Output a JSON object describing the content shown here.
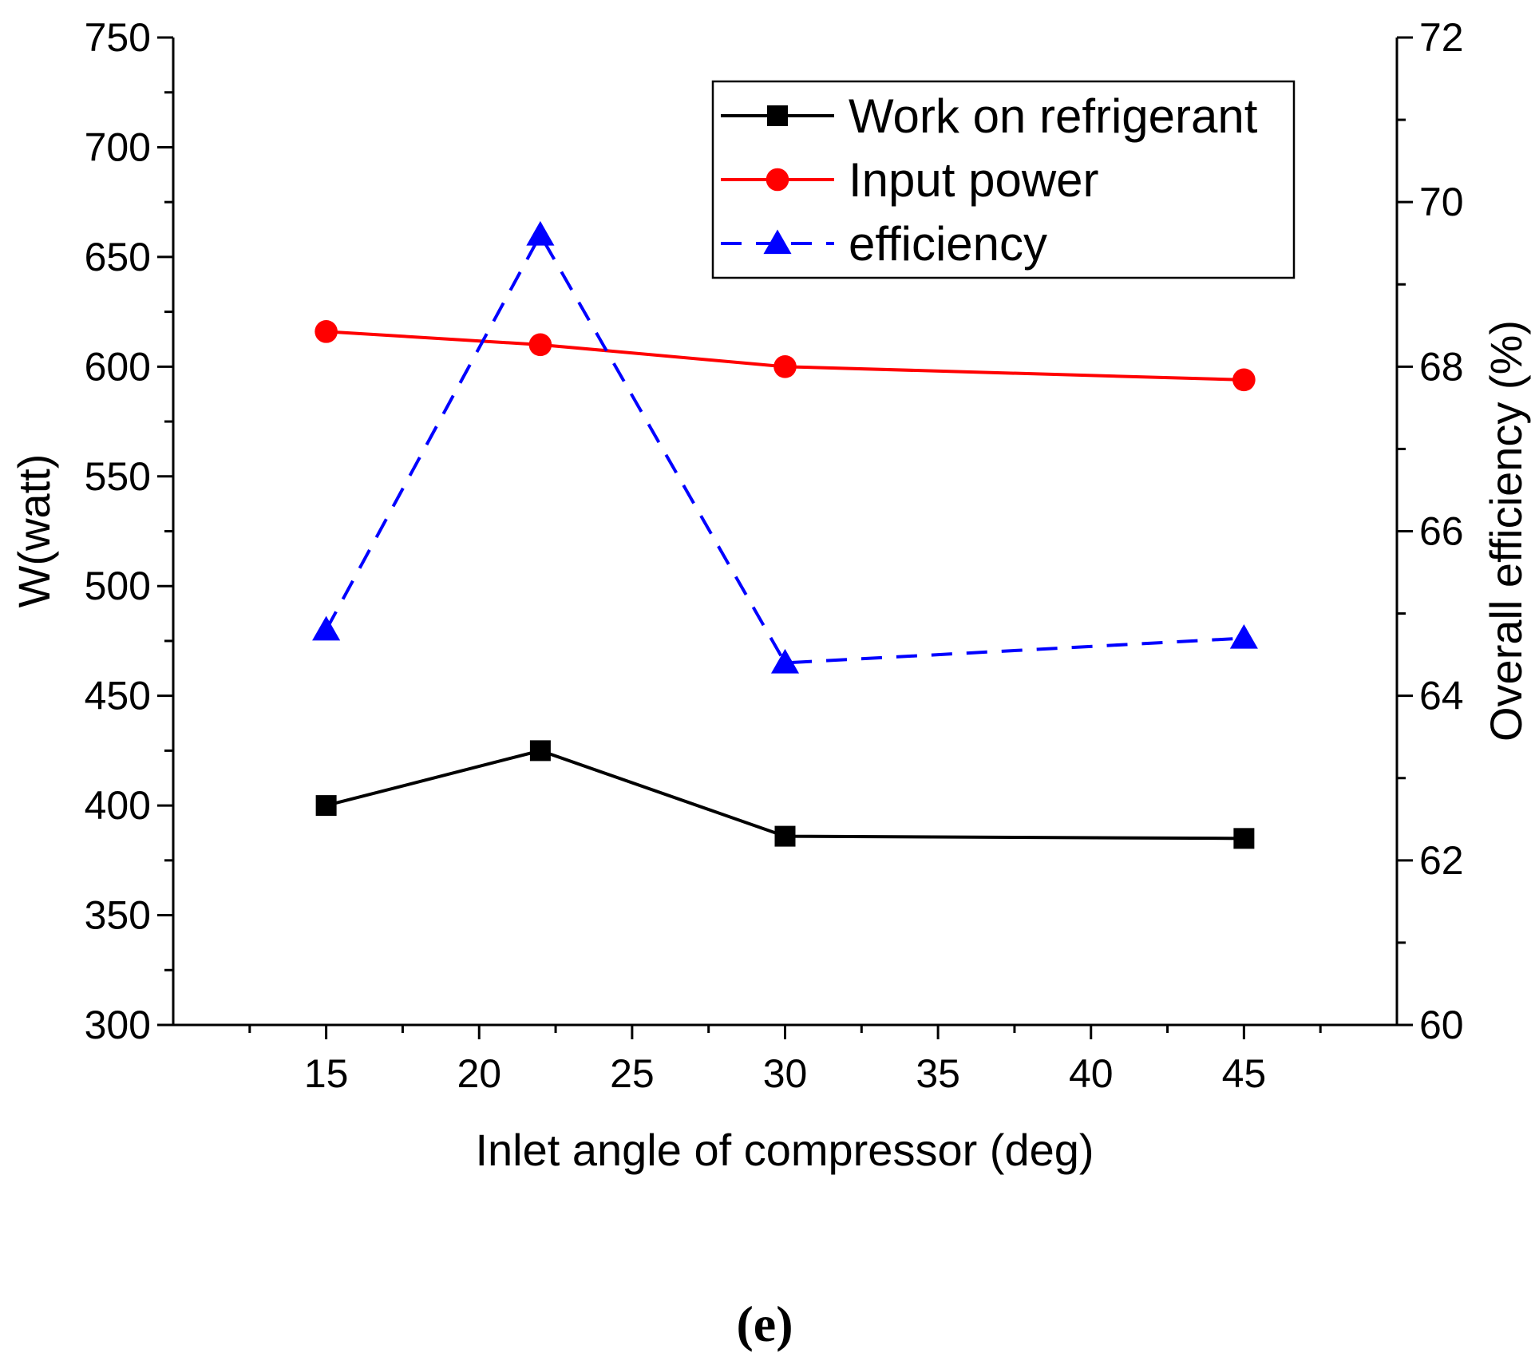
{
  "chart_data": {
    "type": "line",
    "title": "",
    "caption": "(e)",
    "xlabel": "Inlet angle of compressor (deg)",
    "ylabel_left": "W(watt)",
    "ylabel_right": "Overall efficiency (%)",
    "xlim": [
      10,
      50
    ],
    "ylim_left": [
      300,
      750
    ],
    "ylim_right": [
      60,
      72
    ],
    "x_ticks": [
      15,
      20,
      25,
      30,
      35,
      40,
      45
    ],
    "y_left_ticks": [
      300,
      350,
      400,
      450,
      500,
      550,
      600,
      650,
      700,
      750
    ],
    "y_right_ticks": [
      60,
      62,
      64,
      66,
      68,
      70,
      72
    ],
    "grid": false,
    "legend_position": "top-right",
    "x": [
      15,
      22,
      30,
      45
    ],
    "series": [
      {
        "name": "Work on refrigerant",
        "axis": "left",
        "values": [
          400,
          425,
          386,
          385
        ],
        "color": "#000000",
        "marker": "square",
        "dash": false
      },
      {
        "name": "Input power",
        "axis": "left",
        "values": [
          616,
          610,
          600,
          594
        ],
        "color": "#ff0000",
        "marker": "circle",
        "dash": false
      },
      {
        "name": "efficiency",
        "axis": "right",
        "values": [
          64.8,
          69.6,
          64.4,
          64.7
        ],
        "color": "#0000ff",
        "marker": "triangle",
        "dash": true
      }
    ]
  }
}
